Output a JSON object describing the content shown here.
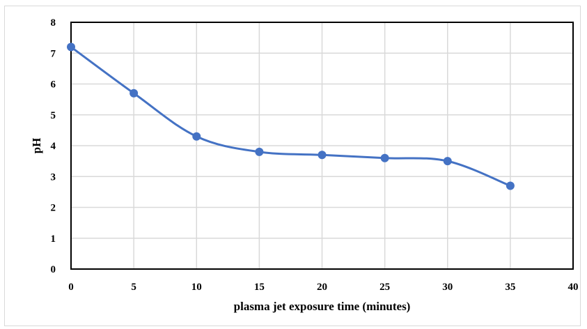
{
  "chart_data": {
    "type": "line",
    "xlabel": "plasma jet exposure time (minutes)",
    "ylabel": "pH",
    "xlim": [
      0,
      40
    ],
    "ylim": [
      0,
      8
    ],
    "x_ticks": [
      "0",
      "5",
      "10",
      "15",
      "20",
      "25",
      "30",
      "35",
      "40"
    ],
    "y_ticks": [
      "0",
      "1",
      "2",
      "3",
      "4",
      "5",
      "6",
      "7",
      "8"
    ],
    "grid": true,
    "smoothed": true,
    "series": [
      {
        "x": [
          0,
          5,
          10,
          15,
          20,
          25,
          30,
          35
        ],
        "y": [
          7.2,
          5.7,
          4.3,
          3.8,
          3.7,
          3.6,
          3.5,
          2.7
        ],
        "color": "#4472c4"
      }
    ]
  }
}
